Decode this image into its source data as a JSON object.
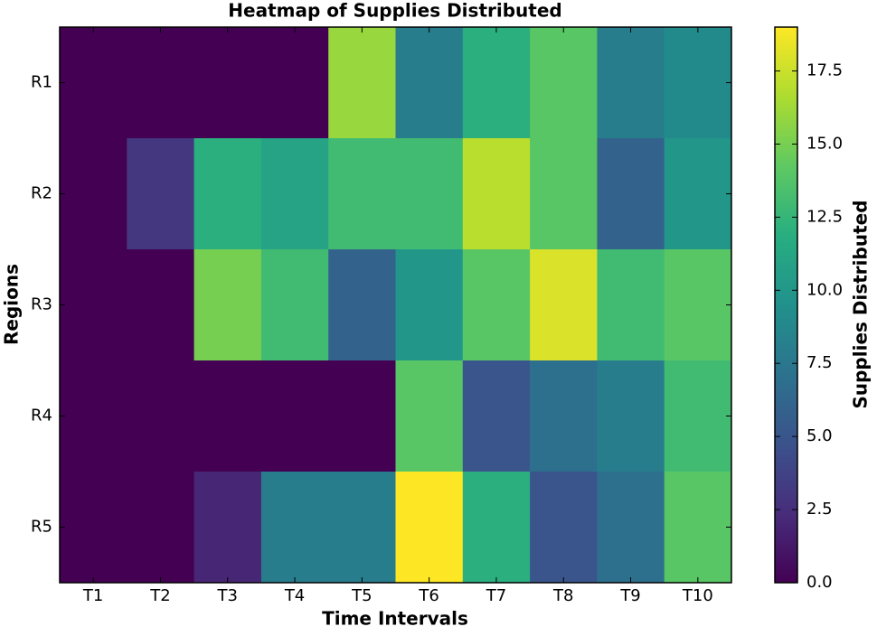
{
  "chart_data": {
    "type": "heatmap",
    "title": "Heatmap of Supplies Distributed",
    "x_label": "Time Intervals",
    "y_label": "Regions",
    "colorbar_label": "Supplies Distributed",
    "colormap": "viridis",
    "x_categories": [
      "T1",
      "T2",
      "T3",
      "T4",
      "T5",
      "T6",
      "T7",
      "T8",
      "T9",
      "T10"
    ],
    "y_categories": [
      "R1",
      "R2",
      "R3",
      "R4",
      "R5"
    ],
    "values": [
      [
        0,
        0,
        0,
        0,
        16,
        8,
        12,
        14,
        8,
        9
      ],
      [
        0,
        3,
        12,
        11,
        13,
        13,
        17,
        14,
        6,
        10
      ],
      [
        0,
        0,
        15,
        13,
        6,
        10,
        14,
        18,
        13,
        14
      ],
      [
        0,
        0,
        0,
        0,
        0,
        14,
        5,
        7,
        8,
        13
      ],
      [
        0,
        0,
        2,
        8,
        8,
        19,
        12,
        5,
        7,
        14
      ]
    ],
    "clim": [
      0,
      19
    ],
    "cticks": [
      {
        "value": 0,
        "label": "0.0"
      },
      {
        "value": 2.5,
        "label": "2.5"
      },
      {
        "value": 5,
        "label": "5.0"
      },
      {
        "value": 7.5,
        "label": "7.5"
      },
      {
        "value": 10,
        "label": "10.0"
      },
      {
        "value": 12.5,
        "label": "12.5"
      },
      {
        "value": 15,
        "label": "15.0"
      },
      {
        "value": 17.5,
        "label": "17.5"
      }
    ]
  }
}
